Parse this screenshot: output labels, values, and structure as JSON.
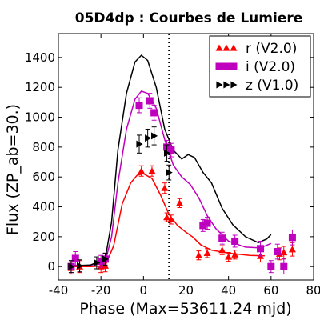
{
  "chart_data": {
    "type": "scatter",
    "title": "05D4dp : Courbes de Lumiere",
    "xlabel": "Phase (Max=53611.24 mjd)",
    "ylabel": "Flux (ZP_ab=30.)",
    "xlim": [
      -40,
      80
    ],
    "ylim": [
      -90,
      1560
    ],
    "xticks": [
      -40,
      -20,
      0,
      20,
      40,
      60,
      80
    ],
    "yticks": [
      0,
      200,
      400,
      600,
      800,
      1000,
      1200,
      1400
    ],
    "xtick_labels": [
      "-40",
      "-20",
      "0",
      "20",
      "40",
      "60",
      "80"
    ],
    "ytick_labels": [
      "0",
      "200",
      "400",
      "600",
      "800",
      "1000",
      "1200",
      "1400"
    ],
    "vline_x": 12,
    "legend_position": "top-right",
    "grid": false,
    "series": [
      {
        "name": "r (V2.0)",
        "color": "#ff0000",
        "marker": "triangle-up",
        "points": [
          {
            "x": -34,
            "y": -10,
            "err": 40
          },
          {
            "x": -30,
            "y": 0,
            "err": 40
          },
          {
            "x": -20,
            "y": 0,
            "err": 40
          },
          {
            "x": -18,
            "y": 5,
            "err": 40
          },
          {
            "x": -1,
            "y": 640,
            "err": 35
          },
          {
            "x": 4,
            "y": 640,
            "err": 35
          },
          {
            "x": 10,
            "y": 525,
            "err": 35
          },
          {
            "x": 17,
            "y": 425,
            "err": 30
          },
          {
            "x": 11,
            "y": 330,
            "err": 30
          },
          {
            "x": 13,
            "y": 315,
            "err": 30
          },
          {
            "x": 26,
            "y": 75,
            "err": 30
          },
          {
            "x": 30,
            "y": 90,
            "err": 30
          },
          {
            "x": 37,
            "y": 110,
            "err": 30
          },
          {
            "x": 40,
            "y": 65,
            "err": 30
          },
          {
            "x": 43,
            "y": 80,
            "err": 30
          },
          {
            "x": 55,
            "y": 70,
            "err": 40
          },
          {
            "x": 64,
            "y": 85,
            "err": 40
          },
          {
            "x": 66,
            "y": 95,
            "err": 40
          },
          {
            "x": 70,
            "y": 115,
            "err": 45
          }
        ],
        "curve": [
          {
            "x": -34,
            "y": 0
          },
          {
            "x": -25,
            "y": 0
          },
          {
            "x": -18,
            "y": 5
          },
          {
            "x": -14,
            "y": 140
          },
          {
            "x": -10,
            "y": 420
          },
          {
            "x": -6,
            "y": 560
          },
          {
            "x": -3,
            "y": 612
          },
          {
            "x": 0,
            "y": 622
          },
          {
            "x": 4,
            "y": 590
          },
          {
            "x": 8,
            "y": 480
          },
          {
            "x": 12,
            "y": 350
          },
          {
            "x": 16,
            "y": 275
          },
          {
            "x": 20,
            "y": 230
          },
          {
            "x": 23,
            "y": 200
          },
          {
            "x": 27,
            "y": 145
          },
          {
            "x": 32,
            "y": 110
          },
          {
            "x": 40,
            "y": 90
          },
          {
            "x": 50,
            "y": 75
          },
          {
            "x": 57,
            "y": 72
          }
        ]
      },
      {
        "name": "i (V2.0)",
        "color": "#bf00bf",
        "marker": "square",
        "points": [
          {
            "x": -34,
            "y": 0,
            "err": 40
          },
          {
            "x": -32,
            "y": 55,
            "err": 45
          },
          {
            "x": -20,
            "y": 35,
            "err": 40
          },
          {
            "x": -18,
            "y": 50,
            "err": 40
          },
          {
            "x": -2,
            "y": 1080,
            "err": 50
          },
          {
            "x": 3,
            "y": 1110,
            "err": 50
          },
          {
            "x": 5,
            "y": 1030,
            "err": 50
          },
          {
            "x": 11,
            "y": 800,
            "err": 45
          },
          {
            "x": 13,
            "y": 780,
            "err": 45
          },
          {
            "x": 28,
            "y": 275,
            "err": 40
          },
          {
            "x": 30,
            "y": 290,
            "err": 40
          },
          {
            "x": 37,
            "y": 190,
            "err": 40
          },
          {
            "x": 43,
            "y": 170,
            "err": 40
          },
          {
            "x": 55,
            "y": 120,
            "err": 50
          },
          {
            "x": 60,
            "y": 0,
            "err": 40
          },
          {
            "x": 63,
            "y": 100,
            "err": 50
          },
          {
            "x": 66,
            "y": 0,
            "err": 50
          },
          {
            "x": 70,
            "y": 195,
            "err": 50
          }
        ],
        "curve": [
          {
            "x": -34,
            "y": 5
          },
          {
            "x": -25,
            "y": 8
          },
          {
            "x": -18,
            "y": 30
          },
          {
            "x": -15,
            "y": 200
          },
          {
            "x": -12,
            "y": 560
          },
          {
            "x": -8,
            "y": 920
          },
          {
            "x": -4,
            "y": 1120
          },
          {
            "x": -1,
            "y": 1175
          },
          {
            "x": 2,
            "y": 1160
          },
          {
            "x": 6,
            "y": 1060
          },
          {
            "x": 10,
            "y": 850
          },
          {
            "x": 14,
            "y": 680
          },
          {
            "x": 18,
            "y": 600
          },
          {
            "x": 22,
            "y": 550
          },
          {
            "x": 26,
            "y": 460
          },
          {
            "x": 30,
            "y": 340
          },
          {
            "x": 34,
            "y": 255
          },
          {
            "x": 40,
            "y": 170
          },
          {
            "x": 48,
            "y": 130
          },
          {
            "x": 55,
            "y": 125
          },
          {
            "x": 60,
            "y": 155
          }
        ]
      },
      {
        "name": "z (V1.0)",
        "color": "#000000",
        "marker": "triangle-right",
        "points": [
          {
            "x": -34,
            "y": 0,
            "err": 40
          },
          {
            "x": -30,
            "y": 5,
            "err": 40
          },
          {
            "x": -22,
            "y": 25,
            "err": 40
          },
          {
            "x": -18,
            "y": 50,
            "err": 40
          },
          {
            "x": -2,
            "y": 820,
            "err": 60
          },
          {
            "x": 2,
            "y": 860,
            "err": 60
          },
          {
            "x": 5,
            "y": 875,
            "err": 60
          },
          {
            "x": 11,
            "y": 760,
            "err": 55
          },
          {
            "x": 12,
            "y": 630,
            "err": 50
          }
        ],
        "curve": [
          {
            "x": -34,
            "y": 5
          },
          {
            "x": -25,
            "y": 10
          },
          {
            "x": -18,
            "y": 50
          },
          {
            "x": -15,
            "y": 300
          },
          {
            "x": -12,
            "y": 780
          },
          {
            "x": -8,
            "y": 1160
          },
          {
            "x": -4,
            "y": 1370
          },
          {
            "x": -1,
            "y": 1415
          },
          {
            "x": 2,
            "y": 1380
          },
          {
            "x": 6,
            "y": 1200
          },
          {
            "x": 10,
            "y": 920
          },
          {
            "x": 14,
            "y": 780
          },
          {
            "x": 18,
            "y": 720
          },
          {
            "x": 21,
            "y": 750
          },
          {
            "x": 24,
            "y": 730
          },
          {
            "x": 28,
            "y": 630
          },
          {
            "x": 32,
            "y": 560
          },
          {
            "x": 37,
            "y": 390
          },
          {
            "x": 42,
            "y": 280
          },
          {
            "x": 48,
            "y": 200
          },
          {
            "x": 54,
            "y": 160
          },
          {
            "x": 58,
            "y": 185
          },
          {
            "x": 60,
            "y": 215
          }
        ]
      }
    ]
  }
}
